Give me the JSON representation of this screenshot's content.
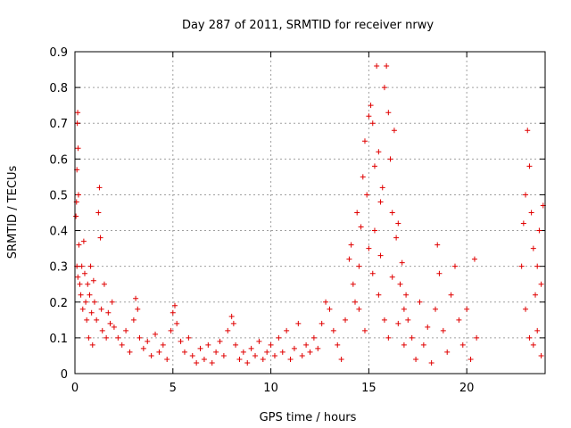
{
  "chart_data": {
    "type": "scatter",
    "title": "Day 287 of 2011, SRMTID for receiver nrwy",
    "xlabel": "GPS time / hours",
    "ylabel": "SRMTID / TECUs",
    "xlim": [
      0,
      24
    ],
    "ylim": [
      0,
      0.9
    ],
    "xticks": [
      0,
      5,
      10,
      15,
      20
    ],
    "yticks": [
      0,
      0.1,
      0.2,
      0.3,
      0.4,
      0.5,
      0.6,
      0.7,
      0.8,
      0.9
    ],
    "ytick_labels": [
      "0",
      "0.1",
      "0.2",
      "0.3",
      "0.4",
      "0.5",
      "0.6",
      "0.7",
      "0.8",
      "0.9"
    ],
    "grid": true,
    "marker": "+",
    "marker_color": "#e00000",
    "series": [
      {
        "name": "SRMTID",
        "points": [
          [
            0.05,
            0.44
          ],
          [
            0.08,
            0.48
          ],
          [
            0.1,
            0.57
          ],
          [
            0.12,
            0.7
          ],
          [
            0.14,
            0.73
          ],
          [
            0.16,
            0.63
          ],
          [
            0.18,
            0.5
          ],
          [
            0.2,
            0.36
          ],
          [
            0.1,
            0.3
          ],
          [
            0.15,
            0.27
          ],
          [
            0.25,
            0.25
          ],
          [
            0.3,
            0.22
          ],
          [
            0.35,
            0.3
          ],
          [
            0.4,
            0.18
          ],
          [
            0.45,
            0.37
          ],
          [
            0.5,
            0.28
          ],
          [
            0.55,
            0.2
          ],
          [
            0.6,
            0.15
          ],
          [
            0.65,
            0.25
          ],
          [
            0.7,
            0.1
          ],
          [
            0.75,
            0.22
          ],
          [
            0.8,
            0.3
          ],
          [
            0.85,
            0.17
          ],
          [
            0.9,
            0.08
          ],
          [
            0.95,
            0.26
          ],
          [
            1.0,
            0.2
          ],
          [
            1.1,
            0.15
          ],
          [
            1.2,
            0.45
          ],
          [
            1.25,
            0.52
          ],
          [
            1.3,
            0.38
          ],
          [
            1.35,
            0.18
          ],
          [
            1.4,
            0.12
          ],
          [
            1.5,
            0.25
          ],
          [
            1.6,
            0.1
          ],
          [
            1.7,
            0.17
          ],
          [
            1.8,
            0.14
          ],
          [
            1.9,
            0.2
          ],
          [
            2.0,
            0.13
          ],
          [
            2.2,
            0.1
          ],
          [
            2.4,
            0.08
          ],
          [
            2.6,
            0.12
          ],
          [
            2.8,
            0.06
          ],
          [
            3.0,
            0.15
          ],
          [
            3.1,
            0.21
          ],
          [
            3.2,
            0.18
          ],
          [
            3.3,
            0.1
          ],
          [
            3.5,
            0.07
          ],
          [
            3.7,
            0.09
          ],
          [
            3.9,
            0.05
          ],
          [
            4.1,
            0.11
          ],
          [
            4.3,
            0.06
          ],
          [
            4.5,
            0.08
          ],
          [
            4.7,
            0.04
          ],
          [
            4.9,
            0.12
          ],
          [
            5.0,
            0.17
          ],
          [
            5.1,
            0.19
          ],
          [
            5.2,
            0.14
          ],
          [
            5.4,
            0.09
          ],
          [
            5.6,
            0.06
          ],
          [
            5.8,
            0.1
          ],
          [
            6.0,
            0.05
          ],
          [
            6.2,
            0.03
          ],
          [
            6.4,
            0.07
          ],
          [
            6.6,
            0.04
          ],
          [
            6.8,
            0.08
          ],
          [
            7.0,
            0.03
          ],
          [
            7.2,
            0.06
          ],
          [
            7.4,
            0.09
          ],
          [
            7.6,
            0.05
          ],
          [
            7.8,
            0.12
          ],
          [
            8.0,
            0.16
          ],
          [
            8.1,
            0.14
          ],
          [
            8.2,
            0.08
          ],
          [
            8.4,
            0.04
          ],
          [
            8.6,
            0.06
          ],
          [
            8.8,
            0.03
          ],
          [
            9.0,
            0.07
          ],
          [
            9.2,
            0.05
          ],
          [
            9.4,
            0.09
          ],
          [
            9.6,
            0.04
          ],
          [
            9.8,
            0.06
          ],
          [
            10.0,
            0.08
          ],
          [
            10.2,
            0.05
          ],
          [
            10.4,
            0.1
          ],
          [
            10.6,
            0.06
          ],
          [
            10.8,
            0.12
          ],
          [
            11.0,
            0.04
          ],
          [
            11.2,
            0.07
          ],
          [
            11.4,
            0.14
          ],
          [
            11.6,
            0.05
          ],
          [
            11.8,
            0.08
          ],
          [
            12.0,
            0.06
          ],
          [
            12.2,
            0.1
          ],
          [
            12.4,
            0.07
          ],
          [
            12.6,
            0.14
          ],
          [
            12.8,
            0.2
          ],
          [
            13.0,
            0.18
          ],
          [
            13.2,
            0.12
          ],
          [
            13.4,
            0.08
          ],
          [
            13.6,
            0.04
          ],
          [
            13.8,
            0.15
          ],
          [
            14.0,
            0.32
          ],
          [
            14.1,
            0.36
          ],
          [
            14.2,
            0.25
          ],
          [
            14.3,
            0.2
          ],
          [
            14.4,
            0.45
          ],
          [
            14.5,
            0.3
          ],
          [
            14.6,
            0.41
          ],
          [
            14.7,
            0.55
          ],
          [
            14.8,
            0.65
          ],
          [
            14.9,
            0.5
          ],
          [
            15.0,
            0.72
          ],
          [
            15.1,
            0.75
          ],
          [
            15.2,
            0.7
          ],
          [
            15.3,
            0.58
          ],
          [
            15.4,
            0.86
          ],
          [
            15.5,
            0.62
          ],
          [
            15.6,
            0.48
          ],
          [
            15.7,
            0.52
          ],
          [
            15.8,
            0.8
          ],
          [
            15.9,
            0.86
          ],
          [
            16.0,
            0.73
          ],
          [
            16.1,
            0.6
          ],
          [
            16.2,
            0.45
          ],
          [
            16.3,
            0.68
          ],
          [
            16.4,
            0.38
          ],
          [
            16.5,
            0.42
          ],
          [
            16.6,
            0.25
          ],
          [
            16.7,
            0.31
          ],
          [
            16.8,
            0.18
          ],
          [
            16.9,
            0.22
          ],
          [
            15.0,
            0.35
          ],
          [
            15.2,
            0.28
          ],
          [
            15.5,
            0.22
          ],
          [
            15.8,
            0.15
          ],
          [
            16.0,
            0.1
          ],
          [
            14.5,
            0.18
          ],
          [
            14.8,
            0.12
          ],
          [
            15.3,
            0.4
          ],
          [
            15.6,
            0.33
          ],
          [
            16.2,
            0.27
          ],
          [
            16.5,
            0.14
          ],
          [
            16.8,
            0.08
          ],
          [
            17.0,
            0.15
          ],
          [
            17.2,
            0.1
          ],
          [
            17.4,
            0.04
          ],
          [
            17.6,
            0.2
          ],
          [
            17.8,
            0.08
          ],
          [
            18.0,
            0.13
          ],
          [
            18.2,
            0.03
          ],
          [
            18.4,
            0.18
          ],
          [
            18.5,
            0.36
          ],
          [
            18.6,
            0.28
          ],
          [
            18.8,
            0.12
          ],
          [
            19.0,
            0.06
          ],
          [
            19.2,
            0.22
          ],
          [
            19.4,
            0.3
          ],
          [
            19.6,
            0.15
          ],
          [
            19.8,
            0.08
          ],
          [
            20.0,
            0.18
          ],
          [
            20.2,
            0.04
          ],
          [
            20.4,
            0.32
          ],
          [
            20.5,
            0.1
          ],
          [
            22.8,
            0.3
          ],
          [
            22.9,
            0.42
          ],
          [
            23.0,
            0.5
          ],
          [
            23.1,
            0.68
          ],
          [
            23.2,
            0.58
          ],
          [
            23.3,
            0.45
          ],
          [
            23.4,
            0.35
          ],
          [
            23.5,
            0.22
          ],
          [
            23.6,
            0.3
          ],
          [
            23.7,
            0.4
          ],
          [
            23.8,
            0.25
          ],
          [
            23.9,
            0.47
          ],
          [
            23.6,
            0.12
          ],
          [
            23.4,
            0.08
          ],
          [
            23.8,
            0.05
          ],
          [
            23.0,
            0.18
          ],
          [
            23.2,
            0.1
          ]
        ]
      }
    ]
  }
}
